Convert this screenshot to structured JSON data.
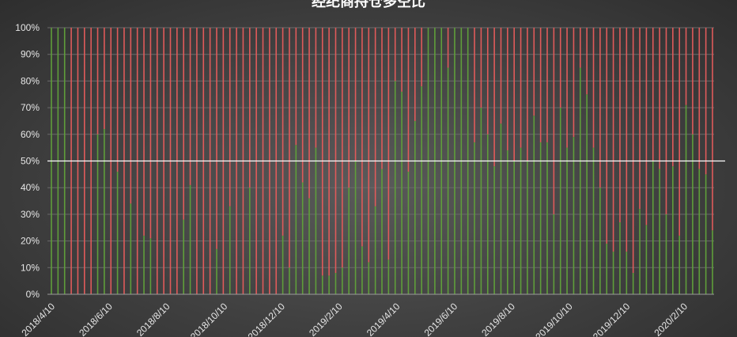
{
  "chart_data": {
    "type": "bar",
    "title": "经纪商持仓多空比",
    "xlabel": "",
    "ylabel": "",
    "ylim": [
      0,
      100
    ],
    "y_ticks": [
      "0%",
      "10%",
      "20%",
      "30%",
      "40%",
      "50%",
      "60%",
      "70%",
      "80%",
      "90%",
      "100%"
    ],
    "x_tick_labels": [
      "2018/4/10",
      "2018/6/10",
      "2018/8/10",
      "2018/10/10",
      "2018/12/10",
      "2019/2/10",
      "2019/4/10",
      "2019/6/10",
      "2019/8/10",
      "2019/10/10",
      "2019/12/10",
      "2020/2/10"
    ],
    "reference_line": 50,
    "colors": {
      "long": "#5f9e3a",
      "short": "#e05a5a",
      "reference": "#ffffff"
    },
    "series": [
      {
        "values": [
          100,
          100,
          100,
          0,
          0,
          0,
          0,
          60,
          62,
          0,
          46,
          0,
          34,
          0,
          22,
          21,
          0,
          0,
          0,
          0,
          28,
          41,
          0,
          0,
          0,
          17,
          0,
          33,
          0,
          0,
          40,
          0,
          0,
          0,
          0,
          22,
          10,
          56,
          42,
          36,
          55,
          7,
          7,
          8,
          10,
          40,
          50,
          18,
          12,
          33,
          47,
          13,
          80,
          76,
          46,
          65,
          78,
          100,
          100,
          100,
          85,
          100,
          100,
          100,
          57,
          70,
          60,
          48,
          64,
          54,
          50,
          55,
          50,
          67,
          57,
          57,
          30,
          70,
          55,
          59,
          85,
          75,
          55,
          40,
          19,
          16,
          27,
          16,
          8,
          32,
          26,
          50,
          47,
          30,
          48,
          22,
          71,
          60,
          47,
          45,
          24
        ]
      }
    ]
  }
}
